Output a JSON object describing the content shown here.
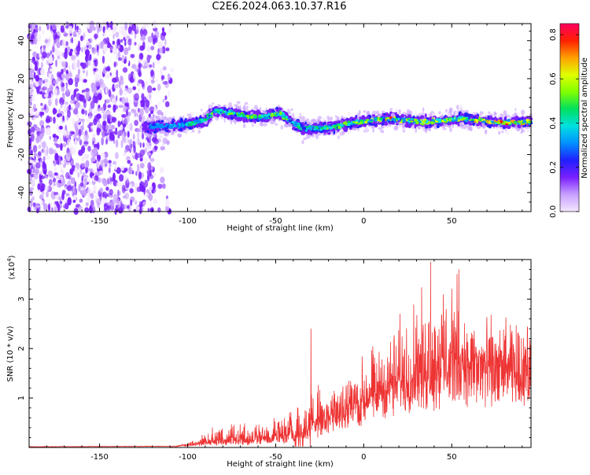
{
  "title": "C2E6.2024.063.10.37.R16",
  "chart_data": [
    {
      "type": "heatmap",
      "xlabel": "Height of straight line (km)",
      "ylabel": "Frequency (Hz)",
      "xlim": [
        -190,
        95
      ],
      "ylim": [
        -50,
        49
      ],
      "xticks": [
        -150,
        -100,
        -50,
        0,
        50
      ],
      "yticks": [
        -40,
        -20,
        0,
        20,
        40
      ],
      "grid": false,
      "colorbar": {
        "label": "Normalized spectral amplitude",
        "range": [
          0.0,
          0.85
        ],
        "ticks": [
          0.0,
          0.2,
          0.4,
          0.6,
          0.8
        ],
        "colormap": [
          "#f4e8ff",
          "#c8a0ff",
          "#7a20ff",
          "#2020ff",
          "#0090ff",
          "#00e0e0",
          "#00e060",
          "#80ff00",
          "#e0ff00",
          "#ffa000",
          "#ff2000",
          "#ff0060"
        ]
      },
      "noise_region_x": [
        -190,
        -115
      ],
      "ridge": {
        "x": [
          -125,
          -110,
          -100,
          -90,
          -85,
          -75,
          -65,
          -55,
          -48,
          -42,
          -35,
          -25,
          -15,
          -5,
          5,
          15,
          25,
          35,
          45,
          55,
          65,
          75,
          85,
          95
        ],
        "center": [
          -5,
          -5,
          -4,
          -2,
          3,
          2,
          0,
          0,
          2,
          -2,
          -6,
          -6,
          -5,
          -3,
          -2,
          -1,
          -2,
          -3,
          -2,
          -1,
          -2,
          -3,
          -3,
          -3
        ],
        "amplitude": [
          0.25,
          0.35,
          0.4,
          0.45,
          0.5,
          0.5,
          0.5,
          0.5,
          0.5,
          0.45,
          0.45,
          0.5,
          0.5,
          0.55,
          0.6,
          0.7,
          0.6,
          0.6,
          0.6,
          0.6,
          0.65,
          0.7,
          0.7,
          0.7
        ]
      }
    },
    {
      "type": "line",
      "xlabel": "Height of straight line (km)",
      "ylabel": "SNR (10 * v/v)",
      "yscale_label": "(x10",
      "yscale_exp": "4",
      "xlim": [
        -190,
        95
      ],
      "ylim": [
        0,
        3.8
      ],
      "xticks": [
        -150,
        -100,
        -50,
        0,
        50
      ],
      "yticks": [
        1,
        2,
        3
      ],
      "color": "#ee3333",
      "grid": false,
      "envelope": {
        "x": [
          -190,
          -110,
          -100,
          -90,
          -80,
          -70,
          -60,
          -50,
          -40,
          -30,
          -25,
          -20,
          -10,
          0,
          10,
          20,
          30,
          40,
          50,
          60,
          70,
          80,
          95
        ],
        "base": [
          0.01,
          0.02,
          0.04,
          0.08,
          0.1,
          0.1,
          0.12,
          0.15,
          0.2,
          0.3,
          0.45,
          0.55,
          0.7,
          0.9,
          1.1,
          1.3,
          1.5,
          1.6,
          1.7,
          1.7,
          1.7,
          1.75,
          1.8
        ],
        "peak": [
          0.02,
          0.03,
          0.1,
          0.35,
          0.5,
          0.6,
          0.6,
          0.7,
          0.9,
          1.3,
          1.4,
          1.5,
          1.7,
          2.0,
          2.4,
          2.8,
          3.2,
          3.7,
          3.4,
          3.0,
          2.8,
          2.6,
          2.4
        ]
      },
      "spikes": [
        {
          "x": -30,
          "y": 2.4
        },
        {
          "x": 38,
          "y": 3.75
        },
        {
          "x": 53,
          "y": 3.5
        },
        {
          "x": 50,
          "y": 3.2
        },
        {
          "x": 54,
          "y": 3.6
        }
      ]
    }
  ]
}
